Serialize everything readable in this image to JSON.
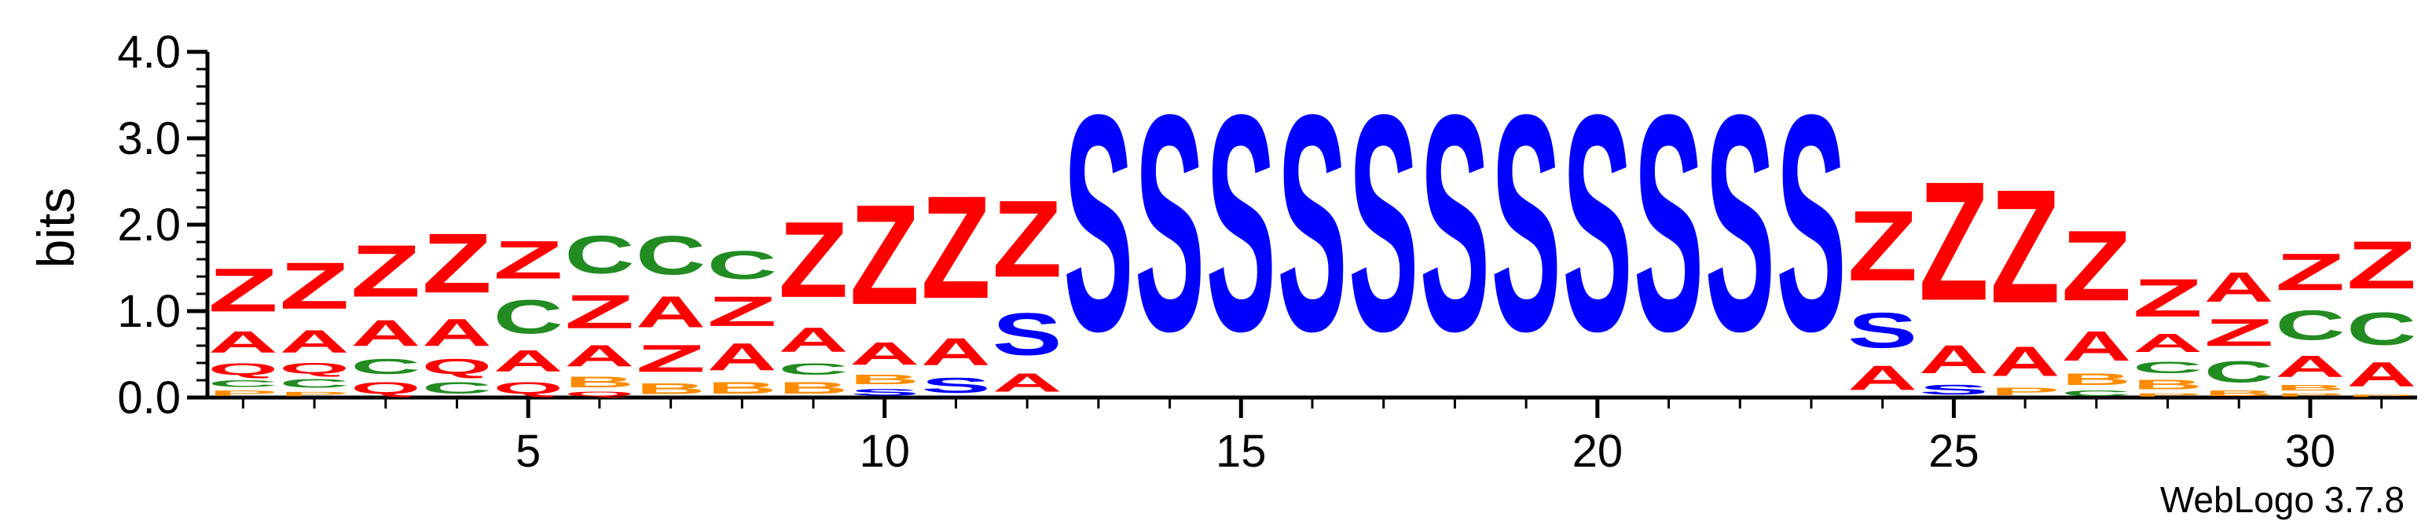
{
  "chart_data": {
    "type": "sequence-logo",
    "ylabel": "bits",
    "ylim": [
      0,
      4.0
    ],
    "yticks": [
      "0.0",
      "1.0",
      "2.0",
      "3.0",
      "4.0"
    ],
    "xlim": [
      0.5,
      31.5
    ],
    "xticks": [
      5,
      10,
      15,
      20,
      25,
      30
    ],
    "credit": "WebLogo 3.7.8",
    "colors": {
      "Z": "#ff0000",
      "A": "#ff0000",
      "Q": "#ff0000",
      "S": "#0000ff",
      "C": "#228b22",
      "B": "#ff8c00",
      "P": "#ff8c00"
    },
    "columns": [
      {
        "pos": 1,
        "stack": [
          [
            "P",
            0.1
          ],
          [
            "C",
            0.12
          ],
          [
            "Q",
            0.22
          ],
          [
            "A",
            0.4
          ],
          [
            "Z",
            0.8
          ]
        ]
      },
      {
        "pos": 2,
        "stack": [
          [
            "P",
            0.08
          ],
          [
            "C",
            0.16
          ],
          [
            "Q",
            0.2
          ],
          [
            "A",
            0.42
          ],
          [
            "Z",
            0.86
          ]
        ]
      },
      {
        "pos": 3,
        "stack": [
          [
            "Q",
            0.22
          ],
          [
            "C",
            0.28
          ],
          [
            "A",
            0.48
          ],
          [
            "Z",
            0.96
          ]
        ]
      },
      {
        "pos": 4,
        "stack": [
          [
            "C",
            0.22
          ],
          [
            "Q",
            0.28
          ],
          [
            "A",
            0.5
          ],
          [
            "Z",
            1.1
          ]
        ]
      },
      {
        "pos": 5,
        "stack": [
          [
            "Q",
            0.22
          ],
          [
            "A",
            0.4
          ],
          [
            "C",
            0.62
          ],
          [
            "Z",
            0.7
          ]
        ]
      },
      {
        "pos": 6,
        "stack": [
          [
            "Q",
            0.08
          ],
          [
            "B",
            0.2
          ],
          [
            "A",
            0.4
          ],
          [
            "Z",
            0.62
          ],
          [
            "C",
            0.7
          ]
        ]
      },
      {
        "pos": 7,
        "stack": [
          [
            "B",
            0.2
          ],
          [
            "Z",
            0.5
          ],
          [
            "A",
            0.58
          ],
          [
            "C",
            0.72
          ]
        ]
      },
      {
        "pos": 8,
        "stack": [
          [
            "B",
            0.22
          ],
          [
            "A",
            0.5
          ],
          [
            "Z",
            0.55
          ],
          [
            "C",
            0.52
          ]
        ]
      },
      {
        "pos": 9,
        "stack": [
          [
            "B",
            0.22
          ],
          [
            "C",
            0.22
          ],
          [
            "A",
            0.45
          ],
          [
            "Z",
            1.4
          ]
        ]
      },
      {
        "pos": 10,
        "stack": [
          [
            "S",
            0.12
          ],
          [
            "B",
            0.18
          ],
          [
            "A",
            0.42
          ],
          [
            "Z",
            1.85
          ]
        ]
      },
      {
        "pos": 11,
        "stack": [
          [
            "S",
            0.28
          ],
          [
            "A",
            0.5
          ],
          [
            "Z",
            1.9
          ]
        ]
      },
      {
        "pos": 12,
        "stack": [
          [
            "A",
            0.34
          ],
          [
            "S",
            0.78
          ],
          [
            "Z",
            1.42
          ]
        ]
      },
      {
        "pos": 13,
        "stack": [
          [
            "S",
            4.0
          ]
        ]
      },
      {
        "pos": 14,
        "stack": [
          [
            "S",
            4.0
          ]
        ]
      },
      {
        "pos": 15,
        "stack": [
          [
            "S",
            4.0
          ]
        ]
      },
      {
        "pos": 16,
        "stack": [
          [
            "S",
            4.0
          ]
        ]
      },
      {
        "pos": 17,
        "stack": [
          [
            "S",
            4.0
          ]
        ]
      },
      {
        "pos": 18,
        "stack": [
          [
            "S",
            4.0
          ]
        ]
      },
      {
        "pos": 19,
        "stack": [
          [
            "S",
            4.0
          ]
        ]
      },
      {
        "pos": 20,
        "stack": [
          [
            "S",
            4.0
          ]
        ]
      },
      {
        "pos": 21,
        "stack": [
          [
            "S",
            4.0
          ]
        ]
      },
      {
        "pos": 22,
        "stack": [
          [
            "S",
            4.0
          ]
        ]
      },
      {
        "pos": 23,
        "stack": [
          [
            "S",
            4.0
          ]
        ]
      },
      {
        "pos": 24,
        "stack": [
          [
            "A",
            0.45
          ],
          [
            "S",
            0.65
          ],
          [
            "Z",
            1.3
          ]
        ]
      },
      {
        "pos": 25,
        "stack": [
          [
            "S",
            0.18
          ],
          [
            "A",
            0.52
          ],
          [
            "Z",
            2.2
          ]
        ]
      },
      {
        "pos": 26,
        "stack": [
          [
            "P",
            0.14
          ],
          [
            "A",
            0.55
          ],
          [
            "Z",
            2.1
          ]
        ]
      },
      {
        "pos": 27,
        "stack": [
          [
            "C",
            0.1
          ],
          [
            "B",
            0.22
          ],
          [
            "A",
            0.55
          ],
          [
            "Z",
            1.3
          ]
        ]
      },
      {
        "pos": 28,
        "stack": [
          [
            "P",
            0.06
          ],
          [
            "B",
            0.18
          ],
          [
            "C",
            0.22
          ],
          [
            "A",
            0.34
          ],
          [
            "Z",
            0.7
          ]
        ]
      },
      {
        "pos": 29,
        "stack": [
          [
            "B",
            0.1
          ],
          [
            "C",
            0.4
          ],
          [
            "Z",
            0.5
          ],
          [
            "A",
            0.55
          ]
        ]
      },
      {
        "pos": 30,
        "stack": [
          [
            "P",
            0.06
          ],
          [
            "B",
            0.1
          ],
          [
            "A",
            0.4
          ],
          [
            "C",
            0.55
          ],
          [
            "Z",
            0.68
          ]
        ]
      },
      {
        "pos": 31,
        "stack": [
          [
            "P",
            0.04
          ],
          [
            "A",
            0.45
          ],
          [
            "C",
            0.6
          ],
          [
            "Z",
            0.88
          ]
        ]
      }
    ]
  }
}
